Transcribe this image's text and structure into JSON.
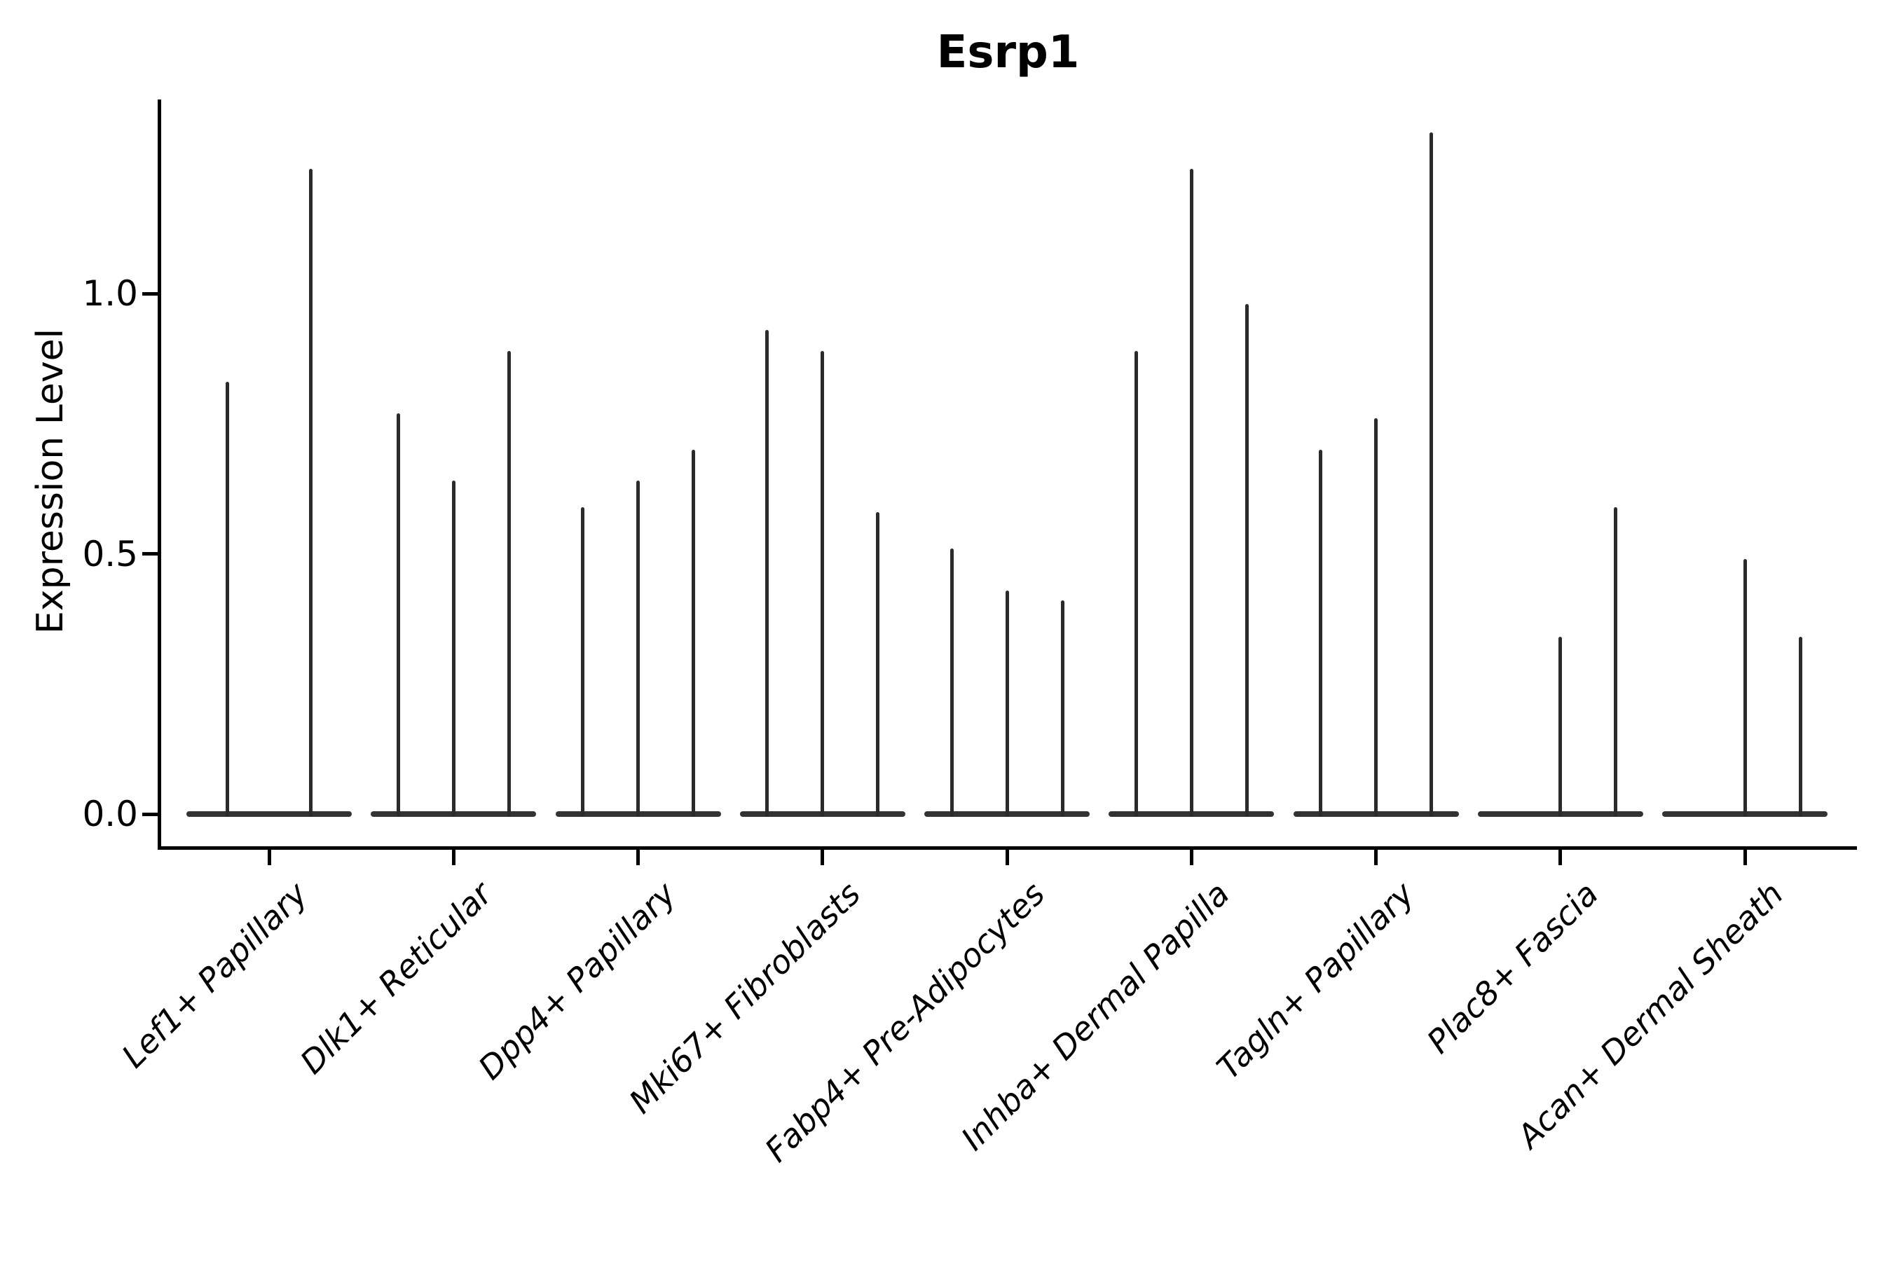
{
  "figure": {
    "title": "Esrp1",
    "ylabel": "Expression Level"
  },
  "chart_data": {
    "type": "violin",
    "title": "Esrp1",
    "xlabel": "",
    "ylabel": "Expression Level",
    "ylim": [
      -0.07,
      1.37
    ],
    "grid": false,
    "legend": "none",
    "yticks": [
      {
        "label": "0.0",
        "value": 0.0
      },
      {
        "label": "0.5",
        "value": 0.5
      },
      {
        "label": "1.0",
        "value": 1.0
      }
    ],
    "note": "Very thin spike-like violins; violin_peaks = peak expression of each violin within the category, 0 = flat violin lying on the zero baseline",
    "categories": [
      {
        "label": "Lef1+ Papillary",
        "violin_peaks": [
          0.83,
          1.24
        ]
      },
      {
        "label": "Dlk1+ Reticular",
        "violin_peaks": [
          0.77,
          0.64,
          0.89
        ]
      },
      {
        "label": "Dpp4+ Papillary",
        "violin_peaks": [
          0.59,
          0.64,
          0.7
        ]
      },
      {
        "label": "Mki67+ Fibroblasts",
        "violin_peaks": [
          0.93,
          0.89,
          0.58
        ]
      },
      {
        "label": "Fabp4+ Pre-Adipocytes",
        "violin_peaks": [
          0.51,
          0.43,
          0.41
        ]
      },
      {
        "label": "Inhba+ Dermal Papilla",
        "violin_peaks": [
          0.89,
          1.24,
          0.98
        ]
      },
      {
        "label": "Tagln+ Papillary",
        "violin_peaks": [
          0.7,
          0.76,
          1.31
        ]
      },
      {
        "label": "Plac8+ Fascia",
        "violin_peaks": [
          0.0,
          0.34,
          0.59
        ]
      },
      {
        "label": "Acan+ Dermal Sheath",
        "violin_peaks": [
          0.0,
          0.49,
          0.34
        ]
      }
    ],
    "colors": {
      "violin_spike": "#2b2b2b",
      "violin_baseline": "#333333",
      "axis": "#000000",
      "text": "#000000",
      "background": "#ffffff"
    }
  }
}
